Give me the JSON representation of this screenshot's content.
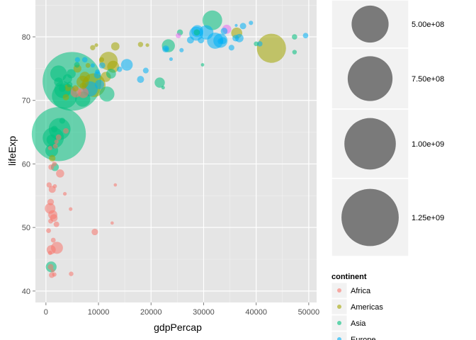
{
  "chart_data": {
    "type": "scatter",
    "title": "",
    "xlabel": "gdpPercap",
    "ylabel": "lifeExp",
    "xlim": [
      -2000,
      51500
    ],
    "ylim": [
      38.2,
      85.8
    ],
    "xticks": [
      0,
      10000,
      20000,
      30000,
      40000,
      50000
    ],
    "xtick_labels": [
      "0",
      "10000",
      "20000",
      "30000",
      "40000",
      "50000"
    ],
    "yticks": [
      40,
      50,
      60,
      70,
      80
    ],
    "ytick_labels": [
      "40",
      "50",
      "60",
      "70",
      "80"
    ],
    "grid": true,
    "size_legend": {
      "entries": [
        {
          "value": 500000000,
          "label": "5.00e+08"
        },
        {
          "value": 750000000,
          "label": "7.50e+08"
        },
        {
          "value": 1000000000,
          "label": "1.00e+09"
        },
        {
          "value": 1250000000,
          "label": "1.25e+09"
        }
      ]
    },
    "color_legend": {
      "title": "continent",
      "placement": "right",
      "entries": [
        {
          "label": "Africa",
          "color": "#F8766D"
        },
        {
          "label": "Americas",
          "color": "#A3A500"
        },
        {
          "label": "Asia",
          "color": "#00BF7D"
        },
        {
          "label": "Europe",
          "color": "#00B0F6"
        }
      ]
    },
    "series": [
      {
        "name": "Africa",
        "color": "#F8766D",
        "points": [
          {
            "x": 1000,
            "y": 46.5,
            "pop": 20000000
          },
          {
            "x": 2100,
            "y": 46.8,
            "pop": 40000000
          },
          {
            "x": 800,
            "y": 53.0,
            "pop": 30000000
          },
          {
            "x": 1300,
            "y": 52.0,
            "pop": 20000000
          },
          {
            "x": 1500,
            "y": 51.5,
            "pop": 12000000
          },
          {
            "x": 2000,
            "y": 50.5,
            "pop": 5000000
          },
          {
            "x": 500,
            "y": 49.5,
            "pop": 3000000
          },
          {
            "x": 1400,
            "y": 48.0,
            "pop": 3000000
          },
          {
            "x": 600,
            "y": 56.7,
            "pop": 4000000
          },
          {
            "x": 1200,
            "y": 56.0,
            "pop": 10000000
          },
          {
            "x": 900,
            "y": 54.0,
            "pop": 8000000
          },
          {
            "x": 2700,
            "y": 58.5,
            "pop": 15000000
          },
          {
            "x": 1000,
            "y": 59.5,
            "pop": 5000000
          },
          {
            "x": 1600,
            "y": 60.0,
            "pop": 3000000
          },
          {
            "x": 800,
            "y": 62.5,
            "pop": 2000000
          },
          {
            "x": 2000,
            "y": 63.5,
            "pop": 2000000
          },
          {
            "x": 1100,
            "y": 42.5,
            "pop": 5000000
          },
          {
            "x": 900,
            "y": 43.8,
            "pop": 5000000
          },
          {
            "x": 1600,
            "y": 42.6,
            "pop": 2000000
          },
          {
            "x": 800,
            "y": 46.0,
            "pop": 2000000
          },
          {
            "x": 4800,
            "y": 42.7,
            "pop": 2500000
          },
          {
            "x": 9300,
            "y": 49.3,
            "pop": 8000000
          },
          {
            "x": 12600,
            "y": 50.7,
            "pop": 600000
          },
          {
            "x": 13200,
            "y": 56.7,
            "pop": 600000
          },
          {
            "x": 3600,
            "y": 55.3,
            "pop": 1000000
          },
          {
            "x": 4700,
            "y": 52.9,
            "pop": 1000000
          },
          {
            "x": 7100,
            "y": 71.2,
            "pop": 30000000
          },
          {
            "x": 5700,
            "y": 71.3,
            "pop": 30000000
          },
          {
            "x": 3800,
            "y": 65.2,
            "pop": 5000000
          },
          {
            "x": 2400,
            "y": 64.2,
            "pop": 5000000
          },
          {
            "x": 1800,
            "y": 62.8,
            "pop": 3000000
          },
          {
            "x": 900,
            "y": 51.0,
            "pop": 3000000
          },
          {
            "x": 1300,
            "y": 43.2,
            "pop": 1000000
          },
          {
            "x": 1700,
            "y": 56.5,
            "pop": 1500000
          }
        ]
      },
      {
        "name": "Americas",
        "color": "#A3A500",
        "points": [
          {
            "x": 42900,
            "y": 78.2,
            "pop": 300000000
          },
          {
            "x": 36300,
            "y": 80.6,
            "pop": 33000000
          },
          {
            "x": 11900,
            "y": 76.2,
            "pop": 110000000
          },
          {
            "x": 9100,
            "y": 72.4,
            "pop": 190000000
          },
          {
            "x": 12800,
            "y": 75.3,
            "pop": 40000000
          },
          {
            "x": 13200,
            "y": 78.5,
            "pop": 16000000
          },
          {
            "x": 7000,
            "y": 72.9,
            "pop": 44000000
          },
          {
            "x": 7400,
            "y": 73.7,
            "pop": 28000000
          },
          {
            "x": 11400,
            "y": 73.7,
            "pop": 26000000
          },
          {
            "x": 8900,
            "y": 78.3,
            "pop": 4000000
          },
          {
            "x": 9600,
            "y": 78.7,
            "pop": 1000000
          },
          {
            "x": 7100,
            "y": 72.3,
            "pop": 9000000
          },
          {
            "x": 6000,
            "y": 75.0,
            "pop": 14000000
          },
          {
            "x": 5600,
            "y": 71.9,
            "pop": 7000000
          },
          {
            "x": 4200,
            "y": 72.0,
            "pop": 10000000
          },
          {
            "x": 3800,
            "y": 70.5,
            "pop": 7000000
          },
          {
            "x": 1200,
            "y": 60.9,
            "pop": 8000000
          },
          {
            "x": 18000,
            "y": 78.8,
            "pop": 4000000
          },
          {
            "x": 10600,
            "y": 76.4,
            "pop": 3500000
          },
          {
            "x": 8000,
            "y": 75.5,
            "pop": 3000000
          },
          {
            "x": 19300,
            "y": 78.7,
            "pop": 1000000
          }
        ]
      },
      {
        "name": "Asia",
        "color": "#00BF7D",
        "points": [
          {
            "x": 4960,
            "y": 73.0,
            "pop": 1320000000
          },
          {
            "x": 2450,
            "y": 64.7,
            "pop": 1110000000
          },
          {
            "x": 3540,
            "y": 70.7,
            "pop": 220000000
          },
          {
            "x": 2600,
            "y": 65.5,
            "pop": 160000000
          },
          {
            "x": 1400,
            "y": 64.1,
            "pop": 150000000
          },
          {
            "x": 31660,
            "y": 82.6,
            "pop": 127000000
          },
          {
            "x": 3200,
            "y": 71.7,
            "pop": 90000000
          },
          {
            "x": 2400,
            "y": 74.2,
            "pop": 85000000
          },
          {
            "x": 7000,
            "y": 70.2,
            "pop": 70000000
          },
          {
            "x": 11600,
            "y": 71.0,
            "pop": 69000000
          },
          {
            "x": 23300,
            "y": 78.6,
            "pop": 49000000
          },
          {
            "x": 1100,
            "y": 62.1,
            "pop": 47000000
          },
          {
            "x": 12400,
            "y": 74.2,
            "pop": 24000000
          },
          {
            "x": 21650,
            "y": 72.8,
            "pop": 27000000
          },
          {
            "x": 4100,
            "y": 73.4,
            "pop": 21000000
          },
          {
            "x": 1100,
            "y": 63.8,
            "pop": 28000000
          },
          {
            "x": 2400,
            "y": 72.9,
            "pop": 19000000
          },
          {
            "x": 1700,
            "y": 59.5,
            "pop": 14000000
          },
          {
            "x": 4800,
            "y": 74.2,
            "pop": 20000000
          },
          {
            "x": 28700,
            "y": 80.7,
            "pop": 7000000
          },
          {
            "x": 47300,
            "y": 80.0,
            "pop": 4500000
          },
          {
            "x": 25500,
            "y": 80.7,
            "pop": 6400000
          },
          {
            "x": 40000,
            "y": 78.9,
            "pop": 2800000
          },
          {
            "x": 47300,
            "y": 77.6,
            "pop": 2500000
          },
          {
            "x": 29800,
            "y": 75.6,
            "pop": 700000
          },
          {
            "x": 22300,
            "y": 72.0,
            "pop": 800000
          },
          {
            "x": 1000,
            "y": 43.8,
            "pop": 31000000
          },
          {
            "x": 3100,
            "y": 66.8,
            "pop": 6000000
          },
          {
            "x": 4500,
            "y": 72.5,
            "pop": 5000000
          },
          {
            "x": 5900,
            "y": 75.6,
            "pop": 5000000
          },
          {
            "x": 3100,
            "y": 71.9,
            "pop": 10000000
          },
          {
            "x": 1600,
            "y": 65.5,
            "pop": 8000000
          }
        ]
      },
      {
        "name": "Europe",
        "color": "#00B0F6",
        "points": [
          {
            "x": 32200,
            "y": 79.4,
            "pop": 82000000
          },
          {
            "x": 30500,
            "y": 80.7,
            "pop": 61000000
          },
          {
            "x": 28600,
            "y": 80.5,
            "pop": 58000000
          },
          {
            "x": 33200,
            "y": 79.4,
            "pop": 60000000
          },
          {
            "x": 8400,
            "y": 71.8,
            "pop": 71000000
          },
          {
            "x": 15400,
            "y": 75.6,
            "pop": 38000000
          },
          {
            "x": 28800,
            "y": 80.9,
            "pop": 40000000
          },
          {
            "x": 10200,
            "y": 72.5,
            "pop": 22000000
          },
          {
            "x": 36800,
            "y": 79.8,
            "pop": 16000000
          },
          {
            "x": 33700,
            "y": 79.4,
            "pop": 10000000
          },
          {
            "x": 27500,
            "y": 79.5,
            "pop": 10000000
          },
          {
            "x": 22800,
            "y": 78.1,
            "pop": 10000000
          },
          {
            "x": 18000,
            "y": 73.3,
            "pop": 10000000
          },
          {
            "x": 9800,
            "y": 74.0,
            "pop": 10000000
          },
          {
            "x": 33900,
            "y": 80.9,
            "pop": 9000000
          },
          {
            "x": 36100,
            "y": 79.8,
            "pop": 8000000
          },
          {
            "x": 37500,
            "y": 81.7,
            "pop": 7500000
          },
          {
            "x": 35300,
            "y": 78.3,
            "pop": 5500000
          },
          {
            "x": 33200,
            "y": 79.3,
            "pop": 5200000
          },
          {
            "x": 49400,
            "y": 80.2,
            "pop": 4600000
          },
          {
            "x": 40700,
            "y": 78.9,
            "pop": 4100000
          },
          {
            "x": 25800,
            "y": 77.9,
            "pop": 2000000
          },
          {
            "x": 36200,
            "y": 81.8,
            "pop": 300000
          },
          {
            "x": 19000,
            "y": 74.7,
            "pop": 5400000
          },
          {
            "x": 14000,
            "y": 74.9,
            "pop": 4500000
          },
          {
            "x": 10700,
            "y": 75.5,
            "pop": 7000000
          },
          {
            "x": 9800,
            "y": 74.5,
            "pop": 3000000
          },
          {
            "x": 7400,
            "y": 76.4,
            "pop": 4500000
          },
          {
            "x": 6000,
            "y": 76.4,
            "pop": 3800000
          },
          {
            "x": 8900,
            "y": 75.5,
            "pop": 2000000
          },
          {
            "x": 23800,
            "y": 76.5,
            "pop": 1000000
          },
          {
            "x": 22900,
            "y": 78.1,
            "pop": 1200000
          },
          {
            "x": 39000,
            "y": 82.2,
            "pop": 2000000
          },
          {
            "x": 29500,
            "y": 79.5,
            "pop": 8000000
          }
        ]
      }
    ],
    "extra_points": [
      {
        "x": 34400,
        "y": 81.2,
        "pop": 20000000,
        "color": "#E76BF3"
      },
      {
        "x": 25200,
        "y": 80.2,
        "pop": 4000000,
        "color": "#E76BF3"
      }
    ]
  }
}
